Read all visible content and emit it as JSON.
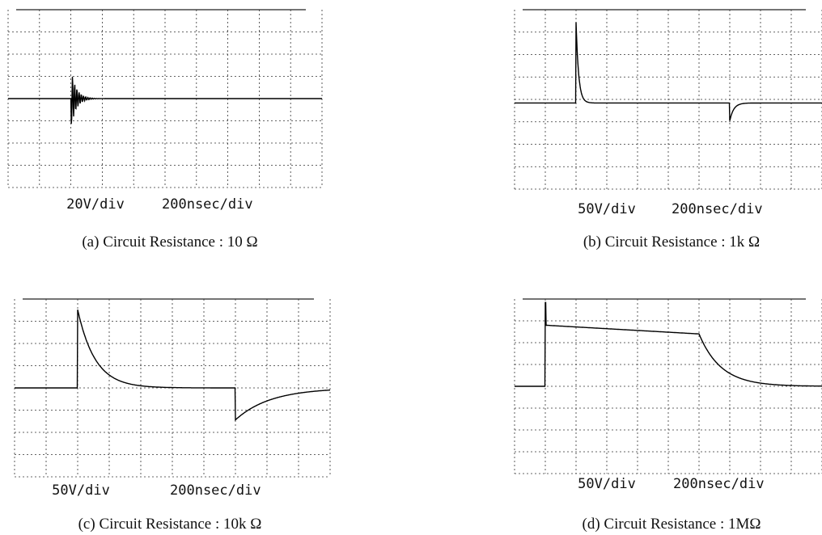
{
  "panels": [
    {
      "scale_v": "20V/div",
      "scale_t": "200nsec/div",
      "caption": "(a) Circuit Resistance : 10 Ω"
    },
    {
      "scale_v": "50V/div",
      "scale_t": "200nsec/div",
      "caption": "(b) Circuit Resistance : 1k Ω"
    },
    {
      "scale_v": "50V/div",
      "scale_t": "200nsec/div",
      "caption": "(c) Circuit Resistance : 10k Ω"
    },
    {
      "scale_v": "50V/div",
      "scale_t": "200nsec/div",
      "caption": "(d) Circuit Resistance : 1MΩ"
    }
  ]
}
